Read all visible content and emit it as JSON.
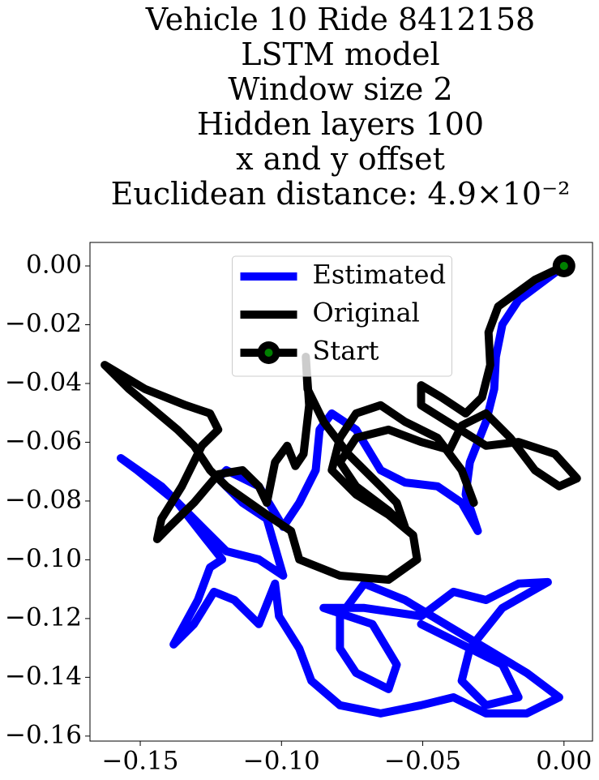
{
  "chart_data": {
    "type": "line",
    "title": [
      "Vehicle 10 Ride 8412158",
      "LSTM model",
      "Window size 2",
      "Hidden layers 100",
      "x and y offset",
      "Euclidean distance: 4.9×10⁻²"
    ],
    "xlim": [
      -0.1678,
      0.0101
    ],
    "ylim": [
      -0.1617,
      0.008
    ],
    "xticks": [
      {
        "value": -0.15,
        "label": "−0.15"
      },
      {
        "value": -0.1,
        "label": "−0.10"
      },
      {
        "value": -0.05,
        "label": "−0.05"
      },
      {
        "value": 0,
        "label": "0.00"
      }
    ],
    "yticks": [
      {
        "value": 0,
        "label": "0.00"
      },
      {
        "value": -0.02,
        "label": "−0.02"
      },
      {
        "value": -0.04,
        "label": "−0.04"
      },
      {
        "value": -0.06,
        "label": "−0.06"
      },
      {
        "value": -0.08,
        "label": "−0.08"
      },
      {
        "value": -0.1,
        "label": "−0.10"
      },
      {
        "value": -0.12,
        "label": "−0.12"
      },
      {
        "value": -0.14,
        "label": "−0.14"
      },
      {
        "value": -0.16,
        "label": "−0.16"
      }
    ],
    "legend": "upper center",
    "series": [
      {
        "name": "Estimated",
        "color": "#0000ff",
        "x": [
          0,
          -0.0161,
          -0.0218,
          -0.0241,
          -0.0247,
          -0.0276,
          -0.0333,
          -0.0348,
          -0.0305,
          -0.0362,
          -0.0448,
          -0.0563,
          -0.0649,
          -0.0736,
          -0.0822,
          -0.0865,
          -0.0879,
          -0.0937,
          -0.0994,
          -0.108,
          -0.1195,
          -0.1224,
          -0.1138,
          -0.1052,
          -0.0994,
          -0.108,
          -0.1195,
          -0.1282,
          -0.1425,
          -0.1569,
          -0.1511,
          -0.1368,
          -0.1267,
          -0.121,
          -0.1253,
          -0.1296,
          -0.1382,
          -0.131,
          -0.1239,
          -0.1167,
          -0.108,
          -0.1023,
          -0.1009,
          -0.0937,
          -0.0894,
          -0.0793,
          -0.0649,
          -0.0506,
          -0.0391,
          -0.0276,
          -0.0132,
          -0.0017,
          -0.0132,
          -0.0276,
          -0.042,
          -0.0563,
          -0.0707,
          -0.0793,
          -0.0793,
          -0.0736,
          -0.0621,
          -0.0592,
          -0.0678,
          -0.0851,
          -0.0707,
          -0.0506,
          -0.0391,
          -0.0276,
          -0.0161,
          -0.0057,
          -0.0218,
          -0.0333,
          -0.0362,
          -0.0276,
          -0.0161,
          -0.0218,
          -0.0391,
          -0.0506
        ],
        "y": [
          0,
          -0.0116,
          -0.0199,
          -0.0309,
          -0.0419,
          -0.053,
          -0.0668,
          -0.0778,
          -0.0902,
          -0.0806,
          -0.075,
          -0.0737,
          -0.0695,
          -0.0557,
          -0.0502,
          -0.0557,
          -0.0695,
          -0.0806,
          -0.0888,
          -0.075,
          -0.0695,
          -0.0723,
          -0.0806,
          -0.0861,
          -0.1054,
          -0.0999,
          -0.0971,
          -0.0888,
          -0.075,
          -0.0654,
          -0.0695,
          -0.0806,
          -0.093,
          -0.0999,
          -0.1026,
          -0.1137,
          -0.1288,
          -0.1219,
          -0.1109,
          -0.1137,
          -0.1219,
          -0.1081,
          -0.1192,
          -0.1302,
          -0.1412,
          -0.1495,
          -0.1523,
          -0.1495,
          -0.1468,
          -0.1523,
          -0.1523,
          -0.1468,
          -0.1385,
          -0.1302,
          -0.1219,
          -0.1137,
          -0.1081,
          -0.1192,
          -0.1302,
          -0.1385,
          -0.144,
          -0.1357,
          -0.1219,
          -0.1164,
          -0.1164,
          -0.1192,
          -0.1109,
          -0.1137,
          -0.1081,
          -0.1076,
          -0.1164,
          -0.1302,
          -0.1412,
          -0.1495,
          -0.1468,
          -0.1357,
          -0.1274,
          -0.1219
        ]
      },
      {
        "name": "Original",
        "color": "#000000",
        "x": [
          0,
          -0.0103,
          -0.0233,
          -0.0267,
          -0.0261,
          -0.029,
          -0.0348,
          -0.0434,
          -0.0506,
          -0.0506,
          -0.0391,
          -0.0276,
          -0.0161,
          -0.0032,
          0.0046,
          -0.0017,
          -0.0103,
          -0.019,
          -0.0276,
          -0.0362,
          -0.0405,
          -0.0506,
          -0.0621,
          -0.0736,
          -0.0793,
          -0.0736,
          -0.0621,
          -0.0563,
          -0.0592,
          -0.0649,
          -0.0764,
          -0.0851,
          -0.0908,
          -0.0914,
          -0.0902,
          -0.0922,
          -0.0951,
          -0.098,
          -0.1023,
          -0.1052,
          -0.108,
          -0.1138,
          -0.1224,
          -0.131,
          -0.1397,
          -0.144,
          -0.1425,
          -0.1353,
          -0.1282,
          -0.1224,
          -0.1253,
          -0.1339,
          -0.1483,
          -0.1626,
          -0.154,
          -0.1368,
          -0.131,
          -0.1253,
          -0.1195,
          -0.1052,
          -0.0966,
          -0.0937,
          -0.0793,
          -0.0621,
          -0.052,
          -0.0534,
          -0.0621,
          -0.0736,
          -0.0822,
          -0.0793,
          -0.0736,
          -0.0649,
          -0.0563,
          -0.0448,
          -0.0362,
          -0.0319
        ],
        "y": [
          0,
          -0.0047,
          -0.0138,
          -0.0226,
          -0.0337,
          -0.0447,
          -0.0502,
          -0.0447,
          -0.0406,
          -0.0474,
          -0.0543,
          -0.0612,
          -0.0599,
          -0.064,
          -0.0723,
          -0.075,
          -0.0695,
          -0.0585,
          -0.0502,
          -0.0543,
          -0.0626,
          -0.0599,
          -0.0557,
          -0.0585,
          -0.0668,
          -0.075,
          -0.0833,
          -0.0888,
          -0.0806,
          -0.075,
          -0.064,
          -0.053,
          -0.0419,
          -0.0309,
          -0.0474,
          -0.064,
          -0.0681,
          -0.0612,
          -0.0668,
          -0.0806,
          -0.075,
          -0.0695,
          -0.0709,
          -0.0806,
          -0.0888,
          -0.093,
          -0.0861,
          -0.075,
          -0.0612,
          -0.0557,
          -0.0502,
          -0.0474,
          -0.0419,
          -0.0337,
          -0.0419,
          -0.0557,
          -0.0612,
          -0.0695,
          -0.075,
          -0.0847,
          -0.0902,
          -0.0999,
          -0.1054,
          -0.1068,
          -0.0999,
          -0.0916,
          -0.0847,
          -0.0778,
          -0.0695,
          -0.0585,
          -0.0502,
          -0.0474,
          -0.053,
          -0.0585,
          -0.0695,
          -0.0806
        ]
      },
      {
        "name": "Start",
        "color": "#000000",
        "marker_color": "#008000",
        "x": [
          0
        ],
        "y": [
          0
        ]
      }
    ]
  }
}
